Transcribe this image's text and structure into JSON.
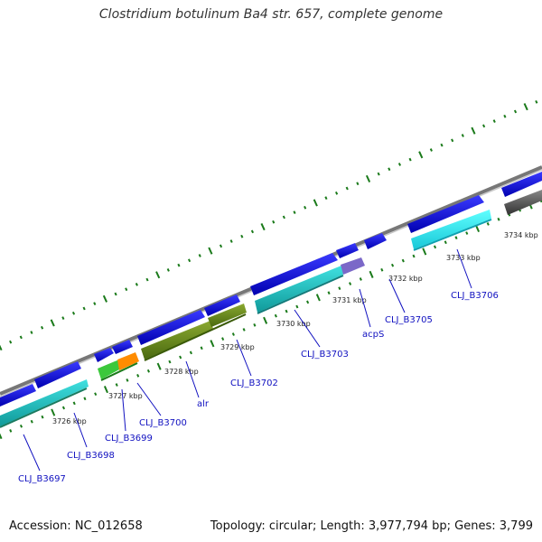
{
  "title": "Clostridium botulinum Ba4 str. 657, complete genome",
  "footer": {
    "accession": "Accession: NC_012658",
    "summary": "Topology: circular; Length: 3,977,794 bp; Genes: 3,799"
  },
  "ticks": [
    {
      "label": "3726 kbp",
      "kbp": 3726
    },
    {
      "label": "3727 kbp",
      "kbp": 3727
    },
    {
      "label": "3728 kbp",
      "kbp": 3728
    },
    {
      "label": "3729 kbp",
      "kbp": 3729
    },
    {
      "label": "3730 kbp",
      "kbp": 3730
    },
    {
      "label": "3731 kbp",
      "kbp": 3731
    },
    {
      "label": "3732 kbp",
      "kbp": 3732
    },
    {
      "label": "3733 kbp",
      "kbp": 3733
    },
    {
      "label": "3734 kbp",
      "kbp": 3734
    }
  ],
  "gene_labels": [
    {
      "name": "CLJ_B3697"
    },
    {
      "name": "CLJ_B3698"
    },
    {
      "name": "CLJ_B3699"
    },
    {
      "name": "CLJ_B3700"
    },
    {
      "name": "alr"
    },
    {
      "name": "CLJ_B3702"
    },
    {
      "name": "CLJ_B3703"
    },
    {
      "name": "acpS"
    },
    {
      "name": "CLJ_B3705"
    },
    {
      "name": "CLJ_B3706"
    }
  ],
  "colors": {
    "cds": "#1010e0",
    "cyan": "#20c8c8",
    "olive": "#6f8f23",
    "green": "#3cc83c",
    "orange": "#ff8c00",
    "purple": "#7b68c8",
    "gray": "#555555",
    "backbone": "#999999",
    "tick": "#1a7a1a",
    "label": "#1010c0"
  }
}
